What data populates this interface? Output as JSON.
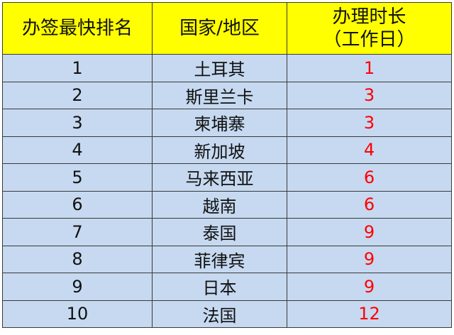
{
  "headers": {
    "rank": "办签最快排名",
    "country": "国家/地区",
    "days_line1": "办理时长",
    "days_line2": "（工作日）"
  },
  "colors": {
    "header_bg": "#ffff00",
    "row_bg": "#c6d9f0",
    "days_text": "#ff0000"
  },
  "rows": [
    {
      "rank": "1",
      "country": "土耳其",
      "days": "1"
    },
    {
      "rank": "2",
      "country": "斯里兰卡",
      "days": "3"
    },
    {
      "rank": "3",
      "country": "柬埔寨",
      "days": "3"
    },
    {
      "rank": "4",
      "country": "新加坡",
      "days": "4"
    },
    {
      "rank": "5",
      "country": "马来西亚",
      "days": "6"
    },
    {
      "rank": "6",
      "country": "越南",
      "days": "6"
    },
    {
      "rank": "7",
      "country": "泰国",
      "days": "9"
    },
    {
      "rank": "8",
      "country": "菲律宾",
      "days": "9"
    },
    {
      "rank": "9",
      "country": "日本",
      "days": "9"
    },
    {
      "rank": "10",
      "country": "法国",
      "days": "12"
    }
  ]
}
